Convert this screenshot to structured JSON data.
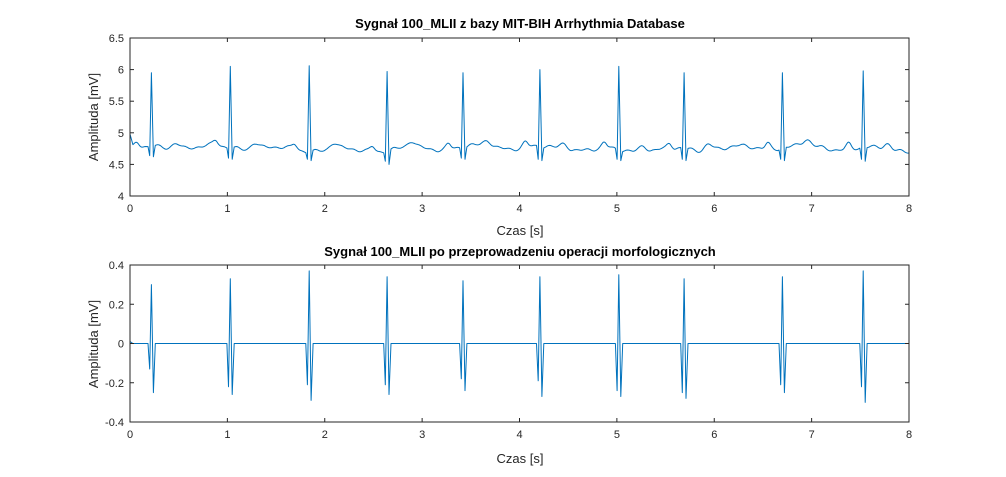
{
  "chart_data": [
    {
      "type": "line",
      "title": "Sygnał 100_MLII z bazy MIT-BIH Arrhythmia Database",
      "xlabel": "Czas [s]",
      "ylabel": "Amplituda [mV]",
      "xlim": [
        0,
        8
      ],
      "ylim": [
        4,
        6.5
      ],
      "xticks": [
        0,
        1,
        2,
        3,
        4,
        5,
        6,
        7,
        8
      ],
      "yticks": [
        4,
        4.5,
        5,
        5.5,
        6,
        6.5
      ],
      "ytick_labels": [
        "4",
        "4.5",
        "5",
        "5.5",
        "6",
        "6.5"
      ],
      "grid": false,
      "line_color": "#0072BD",
      "baseline_value": 4.75,
      "beats": [
        {
          "t": 0.22,
          "peak": 5.95,
          "q": 4.64,
          "s": 4.62
        },
        {
          "t": 1.03,
          "peak": 6.05,
          "q": 4.6,
          "s": 4.58
        },
        {
          "t": 1.84,
          "peak": 6.06,
          "q": 4.58,
          "s": 4.56
        },
        {
          "t": 2.64,
          "peak": 5.97,
          "q": 4.55,
          "s": 4.5
        },
        {
          "t": 3.42,
          "peak": 5.95,
          "q": 4.6,
          "s": 4.58
        },
        {
          "t": 4.21,
          "peak": 6.0,
          "q": 4.58,
          "s": 4.56
        },
        {
          "t": 5.02,
          "peak": 6.05,
          "q": 4.58,
          "s": 4.56
        },
        {
          "t": 5.69,
          "peak": 5.95,
          "q": 4.58,
          "s": 4.56
        },
        {
          "t": 6.7,
          "peak": 5.95,
          "q": 4.58,
          "s": 4.56
        },
        {
          "t": 7.53,
          "peak": 5.98,
          "q": 4.58,
          "s": 4.55
        }
      ]
    },
    {
      "type": "line",
      "title": "Sygnał 100_MLII po przeprowadzeniu operacji morfologicznych",
      "xlabel": "Czas [s]",
      "ylabel": "Amplituda [mV]",
      "xlim": [
        0,
        8
      ],
      "ylim": [
        -0.4,
        0.4
      ],
      "xticks": [
        0,
        1,
        2,
        3,
        4,
        5,
        6,
        7,
        8
      ],
      "yticks": [
        -0.4,
        -0.2,
        0,
        0.2,
        0.4
      ],
      "ytick_labels": [
        "-0.4",
        "-0.2",
        "0",
        "0.2",
        "0.4"
      ],
      "grid": false,
      "line_color": "#0072BD",
      "baseline_value": 0,
      "beats": [
        {
          "t": 0.22,
          "peak": 0.3,
          "q": -0.13,
          "s": -0.25
        },
        {
          "t": 1.03,
          "peak": 0.33,
          "q": -0.22,
          "s": -0.26
        },
        {
          "t": 1.84,
          "peak": 0.37,
          "q": -0.21,
          "s": -0.29
        },
        {
          "t": 2.64,
          "peak": 0.34,
          "q": -0.21,
          "s": -0.26
        },
        {
          "t": 3.42,
          "peak": 0.32,
          "q": -0.18,
          "s": -0.24
        },
        {
          "t": 4.21,
          "peak": 0.34,
          "q": -0.19,
          "s": -0.27
        },
        {
          "t": 5.02,
          "peak": 0.35,
          "q": -0.24,
          "s": -0.27
        },
        {
          "t": 5.69,
          "peak": 0.33,
          "q": -0.25,
          "s": -0.28
        },
        {
          "t": 6.7,
          "peak": 0.34,
          "q": -0.21,
          "s": -0.25
        },
        {
          "t": 7.53,
          "peak": 0.37,
          "q": -0.22,
          "s": -0.3
        }
      ]
    }
  ]
}
